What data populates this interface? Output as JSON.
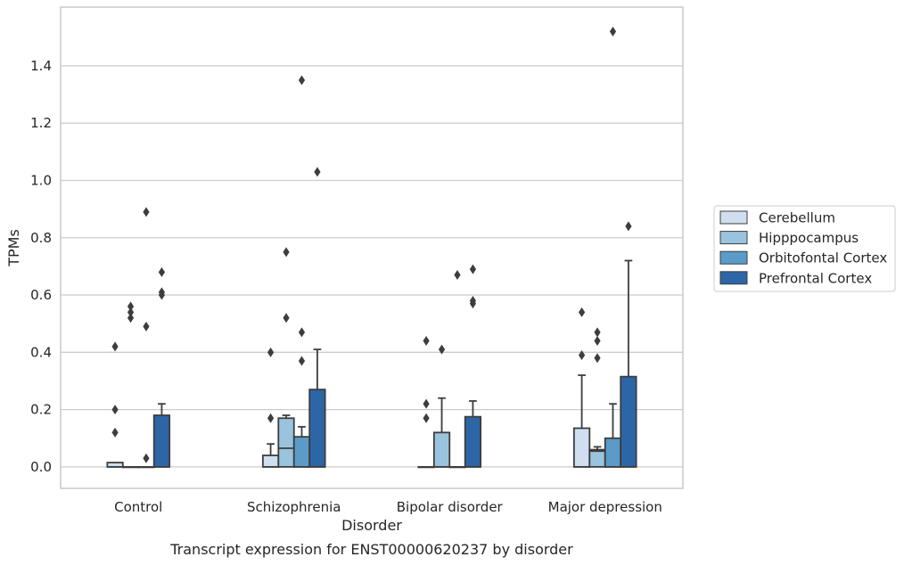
{
  "chart_data": {
    "type": "box",
    "title": "Transcript expression for ENST00000620237 by disorder",
    "xlabel": "Disorder",
    "ylabel": "TPMs",
    "ylim": [
      -0.075,
      1.605
    ],
    "yticks": [
      "0.0",
      "0.2",
      "0.4",
      "0.6",
      "0.8",
      "1.0",
      "1.2",
      "1.4"
    ],
    "grid": "horizontal",
    "legend_position": "right",
    "categories": [
      "Control",
      "Schizophrenia",
      "Bipolar disorder",
      "Major depression"
    ],
    "series": [
      {
        "name": "Cerebellum",
        "color": "#cfdff0",
        "boxes": [
          {
            "q1": 0.0,
            "median": 0.0,
            "q3": 0.015,
            "wlow": 0.0,
            "whigh": 0.015,
            "outliers": [
              0.42,
              0.2,
              0.12
            ]
          },
          {
            "q1": 0.0,
            "median": 0.0,
            "q3": 0.04,
            "wlow": 0.0,
            "whigh": 0.08,
            "outliers": [
              0.4,
              0.17
            ]
          },
          {
            "q1": 0.0,
            "median": 0.0,
            "q3": 0.0,
            "wlow": 0.0,
            "whigh": 0.0,
            "outliers": [
              0.44,
              0.22,
              0.17
            ]
          },
          {
            "q1": 0.0,
            "median": 0.0,
            "q3": 0.135,
            "wlow": 0.0,
            "whigh": 0.32,
            "outliers": [
              0.54,
              0.39
            ]
          }
        ]
      },
      {
        "name": "Hipppocampus",
        "color": "#9ac4dd",
        "boxes": [
          {
            "q1": 0.0,
            "median": 0.0,
            "q3": 0.0,
            "wlow": 0.0,
            "whigh": 0.0,
            "outliers": [
              0.56,
              0.54,
              0.52
            ]
          },
          {
            "q1": 0.0,
            "median": 0.065,
            "q3": 0.17,
            "wlow": 0.0,
            "whigh": 0.18,
            "outliers": [
              0.75,
              0.52
            ]
          },
          {
            "q1": 0.0,
            "median": 0.0,
            "q3": 0.12,
            "wlow": 0.0,
            "whigh": 0.24,
            "outliers": [
              0.41
            ]
          },
          {
            "q1": 0.0,
            "median": 0.055,
            "q3": 0.06,
            "wlow": 0.0,
            "whigh": 0.07,
            "outliers": [
              0.47,
              0.44,
              0.38
            ]
          }
        ]
      },
      {
        "name": "Orbitofontal Cortex",
        "color": "#5a9bc9",
        "boxes": [
          {
            "q1": 0.0,
            "median": 0.0,
            "q3": 0.0,
            "wlow": 0.0,
            "whigh": 0.0,
            "outliers": [
              0.89,
              0.49,
              0.03
            ]
          },
          {
            "q1": 0.0,
            "median": 0.0,
            "q3": 0.105,
            "wlow": 0.0,
            "whigh": 0.14,
            "outliers": [
              1.35,
              0.47,
              0.37
            ]
          },
          {
            "q1": 0.0,
            "median": 0.0,
            "q3": 0.0,
            "wlow": 0.0,
            "whigh": 0.0,
            "outliers": [
              0.67
            ]
          },
          {
            "q1": 0.0,
            "median": 0.0,
            "q3": 0.1,
            "wlow": 0.0,
            "whigh": 0.22,
            "outliers": [
              1.52
            ]
          }
        ]
      },
      {
        "name": "Prefrontal Cortex",
        "color": "#2c66a6",
        "boxes": [
          {
            "q1": 0.0,
            "median": 0.0,
            "q3": 0.18,
            "wlow": 0.0,
            "whigh": 0.22,
            "outliers": [
              0.68,
              0.61,
              0.6
            ]
          },
          {
            "q1": 0.0,
            "median": 0.0,
            "q3": 0.27,
            "wlow": 0.0,
            "whigh": 0.41,
            "outliers": [
              1.03
            ]
          },
          {
            "q1": 0.0,
            "median": 0.0,
            "q3": 0.175,
            "wlow": 0.0,
            "whigh": 0.23,
            "outliers": [
              0.69,
              0.58,
              0.57
            ]
          },
          {
            "q1": 0.0,
            "median": 0.0,
            "q3": 0.315,
            "wlow": 0.0,
            "whigh": 0.72,
            "outliers": [
              0.84
            ]
          }
        ]
      }
    ]
  }
}
